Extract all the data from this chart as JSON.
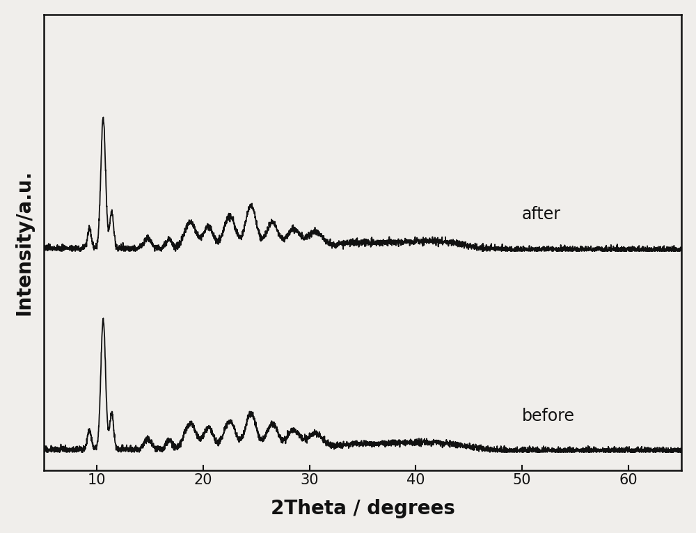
{
  "xlabel": "2Theta / degrees",
  "ylabel": "Intensity/a.u.",
  "xlim": [
    5,
    65
  ],
  "label_after": "after",
  "label_before": "before",
  "label_fontsize": 17,
  "axis_label_fontsize": 20,
  "tick_fontsize": 15,
  "background_color": "#f0eeeb",
  "line_color": "#111111",
  "figsize": [
    10.0,
    7.66
  ],
  "line_width": 1.3,
  "seed": 12
}
